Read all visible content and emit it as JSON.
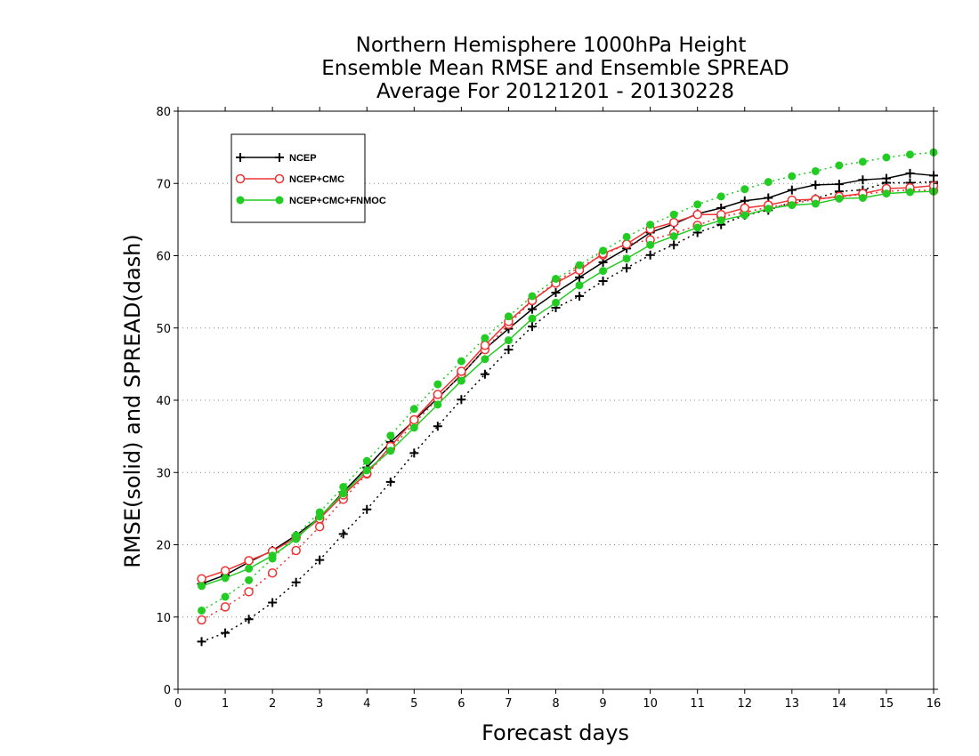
{
  "chart_data": {
    "type": "line",
    "title": [
      "Northern Hemisphere 1000hPa Height",
      "Ensemble Mean RMSE and Ensemble SPREAD",
      "Average For 20121201 - 20130228"
    ],
    "xlabel": "Forecast days",
    "ylabel": "RMSE(solid) and SPREAD(dash)",
    "xlim": [
      0,
      16
    ],
    "ylim": [
      0,
      80
    ],
    "xticks": [
      0,
      1,
      2,
      3,
      4,
      5,
      6,
      7,
      8,
      9,
      10,
      11,
      12,
      13,
      14,
      15,
      16
    ],
    "yticks": [
      0,
      10,
      20,
      30,
      40,
      50,
      60,
      70,
      80
    ],
    "grid": "horizontal dotted",
    "legend_position": "top-left",
    "x": [
      0.5,
      1,
      1.5,
      2,
      2.5,
      3,
      3.5,
      4,
      4.5,
      5,
      5.5,
      6,
      6.5,
      7,
      7.5,
      8,
      8.5,
      9,
      9.5,
      10,
      10.5,
      11,
      11.5,
      12,
      12.5,
      13,
      13.5,
      14,
      14.5,
      15,
      15.5,
      16
    ],
    "series": [
      {
        "name": "NCEP",
        "color": "#000000",
        "marker": "plus",
        "rmse": [
          14.6,
          15.8,
          17.6,
          19.2,
          21.3,
          23.8,
          27.3,
          30.7,
          34.2,
          37.2,
          40.3,
          43.5,
          47.1,
          49.9,
          52.6,
          54.9,
          57.0,
          59.1,
          61.0,
          63.2,
          64.4,
          65.8,
          66.6,
          67.6,
          68.0,
          69.1,
          69.8,
          69.9,
          70.5,
          70.7,
          71.4,
          71.1
        ],
        "spread": [
          6.6,
          7.8,
          9.7,
          12.0,
          14.8,
          17.9,
          21.5,
          24.9,
          28.7,
          32.7,
          36.4,
          40.1,
          43.6,
          47.0,
          50.2,
          52.8,
          54.4,
          56.5,
          58.3,
          60.1,
          61.5,
          63.2,
          64.3,
          65.6,
          66.3,
          67.4,
          67.9,
          68.9,
          69.1,
          70.1,
          70.1,
          70.2
        ]
      },
      {
        "name": "NCEP+CMC",
        "color": "#ee3333",
        "marker": "open-circle",
        "rmse": [
          15.3,
          16.4,
          17.8,
          19.1,
          21.0,
          23.6,
          26.9,
          29.9,
          33.6,
          37.3,
          40.8,
          44.0,
          47.6,
          50.9,
          53.8,
          56.2,
          58.0,
          60.3,
          61.6,
          63.7,
          64.6,
          65.7,
          65.7,
          66.6,
          67.0,
          67.7,
          67.8,
          68.2,
          68.6,
          69.3,
          69.4,
          69.7
        ],
        "spread": [
          9.6,
          11.4,
          13.5,
          16.1,
          19.2,
          22.5,
          26.3,
          29.8,
          33.3,
          36.8,
          40.2,
          43.6,
          47.0,
          50.5,
          53.8,
          56.4,
          58.4,
          60.1,
          61.6,
          62.2,
          63.1,
          64.2,
          65.4,
          66.0,
          66.7,
          67.2,
          67.8,
          68.1,
          68.5,
          68.9,
          69.1,
          69.0
        ]
      },
      {
        "name": "NCEP+CMC+FNMOC",
        "color": "#22cc22",
        "marker": "filled-circle",
        "rmse": [
          14.3,
          15.4,
          16.7,
          18.5,
          20.8,
          23.9,
          27.1,
          30.3,
          33.0,
          36.2,
          39.4,
          42.7,
          45.7,
          48.3,
          51.3,
          53.5,
          55.9,
          57.9,
          59.6,
          61.5,
          62.7,
          63.9,
          64.9,
          65.6,
          66.5,
          67.0,
          67.2,
          67.9,
          68.0,
          68.6,
          68.8,
          68.9
        ],
        "spread": [
          10.9,
          12.8,
          15.1,
          18.1,
          21.3,
          24.5,
          28.0,
          31.6,
          35.1,
          38.8,
          42.2,
          45.4,
          48.6,
          51.6,
          54.4,
          56.8,
          58.7,
          60.7,
          62.6,
          64.3,
          65.7,
          67.1,
          68.2,
          69.2,
          70.2,
          71.0,
          71.7,
          72.5,
          73.0,
          73.6,
          74.0,
          74.3
        ]
      }
    ]
  }
}
